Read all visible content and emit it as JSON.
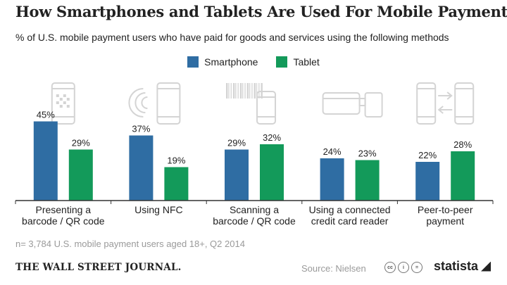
{
  "title": "How Smartphones and Tablets Are Used For Mobile Payments",
  "subtitle": "% of U.S. mobile payment users who have paid for goods and services using the following methods",
  "colors": {
    "smartphone": "#2f6da3",
    "tablet": "#139a5a",
    "icon": "#d4d4d4",
    "axis": "#333333"
  },
  "chart_data": {
    "type": "bar",
    "categories": [
      [
        "Presenting a",
        "barcode / QR code"
      ],
      [
        "Using NFC"
      ],
      [
        "Scanning a",
        "barcode / QR code"
      ],
      [
        "Using a connected",
        "credit card reader"
      ],
      [
        "Peer-to-peer",
        "payment"
      ]
    ],
    "series": [
      {
        "name": "Smartphone",
        "values": [
          45,
          37,
          29,
          24,
          22
        ]
      },
      {
        "name": "Tablet",
        "values": [
          29,
          19,
          32,
          23,
          28
        ]
      }
    ],
    "value_suffix": "%",
    "ylim": [
      0,
      50
    ],
    "legend_position": "top-center",
    "grid": false,
    "icons": [
      "phone-qr-icon",
      "phone-nfc-icon",
      "barcode-phone-icon",
      "phone-card-reader-icon",
      "phone-transfer-icon"
    ]
  },
  "note": "n= 3,784 U.S. mobile payment users aged 18+, Q2 2014",
  "footer": {
    "publisher": "THE WALL STREET JOURNAL.",
    "source": "Source: Nielsen",
    "cc_icons": [
      "cc",
      "i",
      "="
    ],
    "brand": "statista"
  }
}
